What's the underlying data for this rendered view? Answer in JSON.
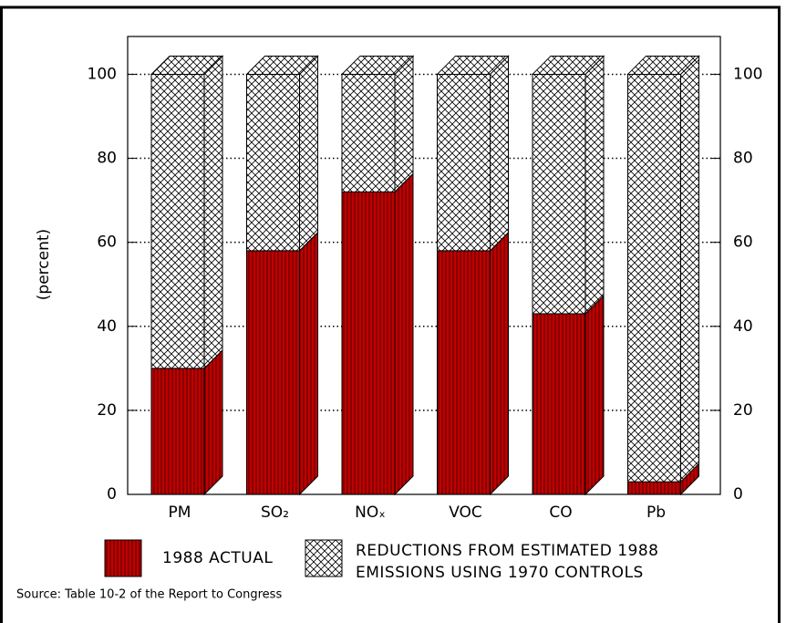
{
  "chart_data": {
    "type": "stacked-bar-3d",
    "ylabel": "(percent)",
    "categories": [
      "PM",
      "SO₂",
      "NOₓ",
      "VOC",
      "CO",
      "Pb"
    ],
    "series": [
      {
        "name": "1988 ACTUAL",
        "color": "#b00000",
        "values": [
          30,
          58,
          72,
          58,
          43,
          3
        ]
      },
      {
        "name": "REDUCTIONS FROM ESTIMATED 1988 EMISSIONS USING 1970 CONTROLS",
        "color": "#ffffff",
        "values": [
          70,
          42,
          28,
          42,
          57,
          97
        ]
      }
    ],
    "ylim": [
      0,
      109
    ],
    "yticks": [
      0,
      20,
      40,
      60,
      80,
      100
    ],
    "grid": true,
    "source": "Source: Table 10-2 of the Report to Congress"
  }
}
